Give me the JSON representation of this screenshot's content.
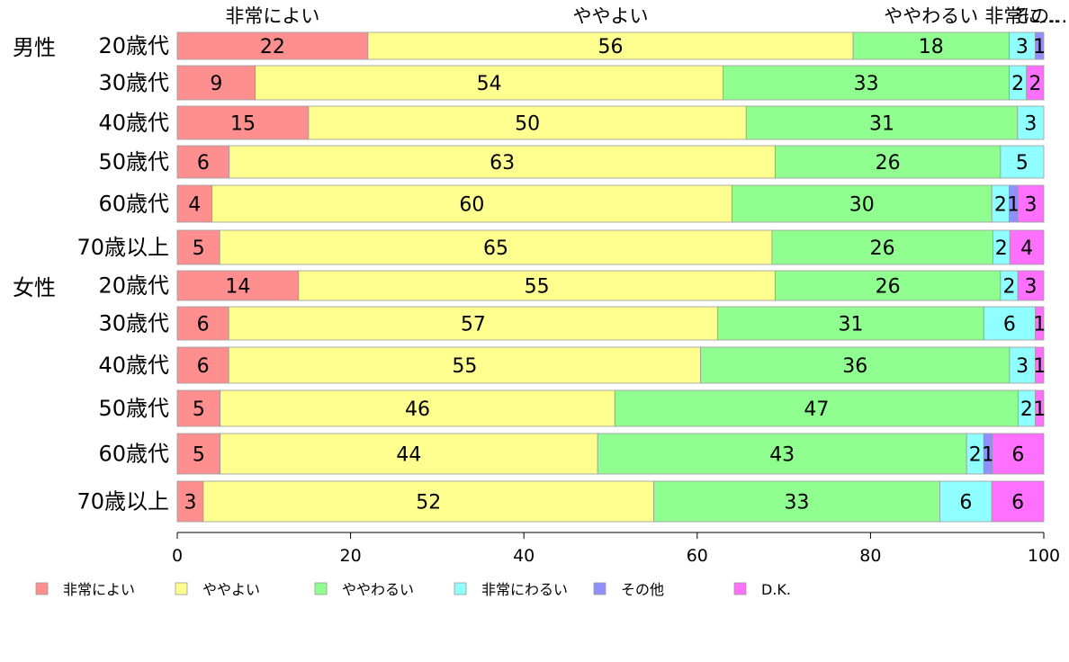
{
  "chart_data": {
    "type": "bar",
    "orientation": "horizontal",
    "stacked": true,
    "groups": [
      "男性",
      "女性"
    ],
    "categories": [
      "20歳代",
      "30歳代",
      "40歳代",
      "50歳代",
      "60歳代",
      "70歳以上",
      "20歳代",
      "30歳代",
      "40歳代",
      "50歳代",
      "60歳代",
      "70歳以上"
    ],
    "series": [
      {
        "name": "非常によい",
        "color": "#ff8f8f",
        "values": [
          22,
          9,
          15,
          6,
          4,
          5,
          14,
          6,
          6,
          5,
          5,
          3
        ]
      },
      {
        "name": "ややよい",
        "color": "#ffff8f",
        "values": [
          56,
          54,
          50,
          63,
          60,
          65,
          55,
          57,
          55,
          46,
          44,
          52
        ]
      },
      {
        "name": "ややわるい",
        "color": "#8fff8f",
        "values": [
          18,
          33,
          31,
          26,
          30,
          26,
          26,
          31,
          36,
          47,
          43,
          33
        ]
      },
      {
        "name": "非常にわるい",
        "color": "#8fffff",
        "values": [
          3,
          2,
          3,
          5,
          2,
          2,
          2,
          6,
          3,
          2,
          2,
          6
        ]
      },
      {
        "name": "その他",
        "color": "#8f8fff",
        "values": [
          1,
          0,
          0,
          0,
          1,
          0,
          0,
          0,
          0,
          0,
          1,
          0
        ]
      },
      {
        "name": "D.K.",
        "color": "#ff70ff",
        "values": [
          0,
          2,
          0,
          0,
          3,
          4,
          3,
          1,
          1,
          1,
          6,
          6
        ]
      }
    ],
    "top_labels": [
      "非常によい",
      "ややよい",
      "ややわるい",
      "非常に...",
      "その..."
    ],
    "xlim": [
      0,
      100
    ],
    "xticks": [
      0,
      20,
      40,
      60,
      80,
      100
    ],
    "legend_position": "bottom",
    "grid": false
  }
}
